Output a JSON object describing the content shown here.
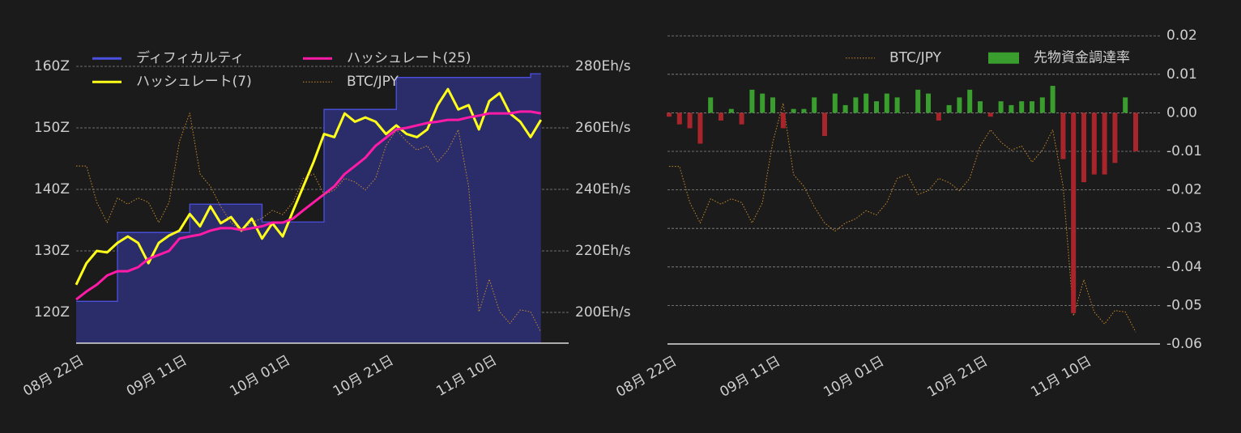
{
  "chart_data": [
    {
      "type": "line",
      "categories": [
        "08月 22日",
        null,
        null,
        null,
        null,
        null,
        null,
        null,
        null,
        null,
        "09月 11日",
        null,
        null,
        null,
        null,
        null,
        null,
        null,
        null,
        null,
        "10月 01日",
        null,
        null,
        null,
        null,
        null,
        null,
        null,
        null,
        null,
        "10月 21日",
        null,
        null,
        null,
        null,
        null,
        null,
        null,
        null,
        null,
        "11月 10日",
        null,
        null,
        null,
        null,
        null
      ],
      "series": [
        {
          "name": "ディフィカルティ",
          "color": "#4b50e0",
          "fill": "#2b2d6b",
          "step": true,
          "values": [
            121.8,
            121.8,
            121.8,
            121.8,
            133,
            133,
            133,
            133,
            133,
            133,
            133,
            137.6,
            137.6,
            137.6,
            137.6,
            137.6,
            137.6,
            137.6,
            134.7,
            134.7,
            134.7,
            134.7,
            134.7,
            134.7,
            153,
            153,
            153,
            153,
            153,
            153,
            153,
            158.2,
            158.2,
            158.2,
            158.2,
            158.2,
            158.2,
            158.2,
            158.2,
            158.2,
            158.2,
            158.2,
            158.2,
            158.2,
            158.8,
            158.8
          ]
        },
        {
          "name": "ハッシュレート(7)",
          "color": "#ffff1a",
          "axis": "y2",
          "values": [
            209,
            216,
            220,
            219.5,
            222.6,
            224.7,
            222.6,
            216,
            222.6,
            225,
            226.6,
            232,
            228,
            234.5,
            229,
            231,
            226.6,
            230.5,
            224,
            229,
            224.7,
            233,
            241,
            249,
            258,
            257,
            264.7,
            262,
            263.4,
            262,
            258,
            260.8,
            258,
            257,
            259.5,
            267.4,
            272.6,
            266,
            267.4,
            259.5,
            268.7,
            271.3,
            264.7,
            262,
            257,
            262.6
          ]
        },
        {
          "name": "ハッシュレート(25)",
          "color": "#ff1aa8",
          "axis": "y2",
          "values": [
            204.2,
            206.8,
            209,
            212,
            213.4,
            213.4,
            214.7,
            217.4,
            218.7,
            220,
            224,
            224.7,
            225.3,
            226.6,
            227.4,
            227.4,
            226.8,
            227.4,
            228,
            229.2,
            229.2,
            230.5,
            233.2,
            235.8,
            238.4,
            241,
            245,
            247.6,
            250.3,
            254.2,
            256.8,
            259.5,
            260,
            260.8,
            261.6,
            262,
            262.6,
            262.6,
            263.4,
            264,
            264.7,
            264.7,
            264.7,
            265.3,
            265.3,
            264.7
          ]
        },
        {
          "name": "BTC/JPY",
          "color": "#c98a2a",
          "dashed": true,
          "values": [
            143.8,
            143.8,
            137.9,
            134.6,
            138.6,
            137.6,
            138.6,
            137.9,
            134.6,
            137.9,
            147.8,
            152.4,
            142.5,
            140.5,
            137.2,
            134.6,
            133.3,
            134.6,
            135.3,
            136.6,
            135.9,
            137.9,
            141.8,
            142.5,
            139.2,
            139.9,
            141.8,
            141.2,
            139.9,
            141.8,
            147.1,
            149.7,
            147.8,
            146.4,
            147.1,
            144.5,
            146.4,
            149.7,
            140.5,
            120.1,
            125.4,
            120.1,
            118.2,
            120.4,
            120.1,
            116.8
          ]
        }
      ],
      "ylim": [
        115,
        163
      ],
      "yticks": [
        {
          "value": 120,
          "label": "120Z"
        },
        {
          "value": 130,
          "label": "130Z"
        },
        {
          "value": 140,
          "label": "140Z"
        },
        {
          "value": 150,
          "label": "150Z"
        },
        {
          "value": 160,
          "label": "160Z"
        }
      ],
      "y2lim": [
        190,
        286
      ],
      "y2ticks": [
        {
          "value": 200,
          "label": "200Eh/s"
        },
        {
          "value": 220,
          "label": "220Eh/s"
        },
        {
          "value": 240,
          "label": "240Eh/s"
        },
        {
          "value": 260,
          "label": "260Eh/s"
        },
        {
          "value": 280,
          "label": "280Eh/s"
        }
      ],
      "grid": true,
      "legend": "top-left"
    },
    {
      "type": "bar",
      "categories": [
        "08月 22日",
        null,
        null,
        null,
        null,
        null,
        null,
        null,
        null,
        null,
        "09月 11日",
        null,
        null,
        null,
        null,
        null,
        null,
        null,
        null,
        null,
        "10月 01日",
        null,
        null,
        null,
        null,
        null,
        null,
        null,
        null,
        null,
        "10月 21日",
        null,
        null,
        null,
        null,
        null,
        null,
        null,
        null,
        null,
        "11月 10日",
        null,
        null,
        null,
        null,
        null
      ],
      "series": [
        {
          "name": "BTC/JPY",
          "type": "line",
          "color": "#c98a2a",
          "dashed": true,
          "values": [
            -0.0139,
            -0.0139,
            -0.0233,
            -0.0286,
            -0.0223,
            -0.0237,
            -0.0223,
            -0.0233,
            -0.0286,
            -0.0233,
            -0.0076,
            0.0025,
            -0.016,
            -0.0191,
            -0.0244,
            -0.0286,
            -0.0307,
            -0.0286,
            -0.0275,
            -0.0254,
            -0.0265,
            -0.0233,
            -0.017,
            -0.016,
            -0.0212,
            -0.0202,
            -0.017,
            -0.0181,
            -0.0202,
            -0.017,
            -0.0086,
            -0.0044,
            -0.0076,
            -0.0097,
            -0.0086,
            -0.0128,
            -0.0097,
            -0.0044,
            -0.0191,
            -0.0527,
            -0.0433,
            -0.0517,
            -0.0548,
            -0.0513,
            -0.0517,
            -0.0569
          ]
        },
        {
          "name": "先物資金調達率",
          "color": "#3a9e2e",
          "negative_color": "#a8252c",
          "values": [
            -0.001,
            -0.003,
            -0.004,
            -0.008,
            0.004,
            -0.002,
            0.001,
            -0.003,
            0.006,
            0.005,
            0.004,
            -0.004,
            0.001,
            0.001,
            0.004,
            -0.006,
            0.005,
            0.002,
            0.004,
            0.005,
            0.003,
            0.005,
            0.004,
            0,
            0.006,
            0.005,
            -0.002,
            0.002,
            0.004,
            0.006,
            0.003,
            -0.001,
            0.003,
            0.002,
            0.003,
            0.003,
            0.004,
            0.007,
            -0.012,
            -0.052,
            -0.018,
            -0.016,
            -0.016,
            -0.013,
            0.004,
            -0.01
          ]
        }
      ],
      "ylim": [
        -0.06,
        0.022
      ],
      "yticks": [
        0.02,
        0.01,
        {
          "value": 0,
          "label": "0.00"
        },
        -0.01,
        -0.02,
        -0.03,
        -0.04,
        -0.05,
        -0.06
      ],
      "y_axis_side": "right",
      "grid": true,
      "legend": "top-right"
    }
  ]
}
